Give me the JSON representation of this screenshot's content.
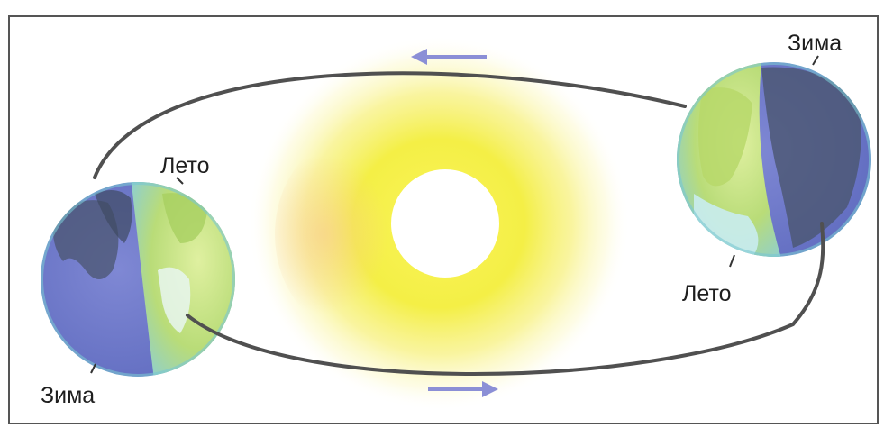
{
  "labels": {
    "left_summer": "Лето",
    "left_winter": "Зима",
    "right_winter": "Зима",
    "right_summer": "Лето"
  },
  "colors": {
    "frame": "#555555",
    "orbit": "#505050",
    "arrow": "#8b8fd6",
    "sun_glow": "#f4ef3a",
    "sun_disc": "#ffffff",
    "earth_day": "#c7e27a",
    "earth_night": "#6f79c8",
    "earth_ocean": "#8fd6d8",
    "earth_land_night": "#4b5670"
  },
  "icons": {
    "sun": "sun-icon",
    "earth": "earth-globe-icon",
    "direction": "arrow-icon"
  }
}
